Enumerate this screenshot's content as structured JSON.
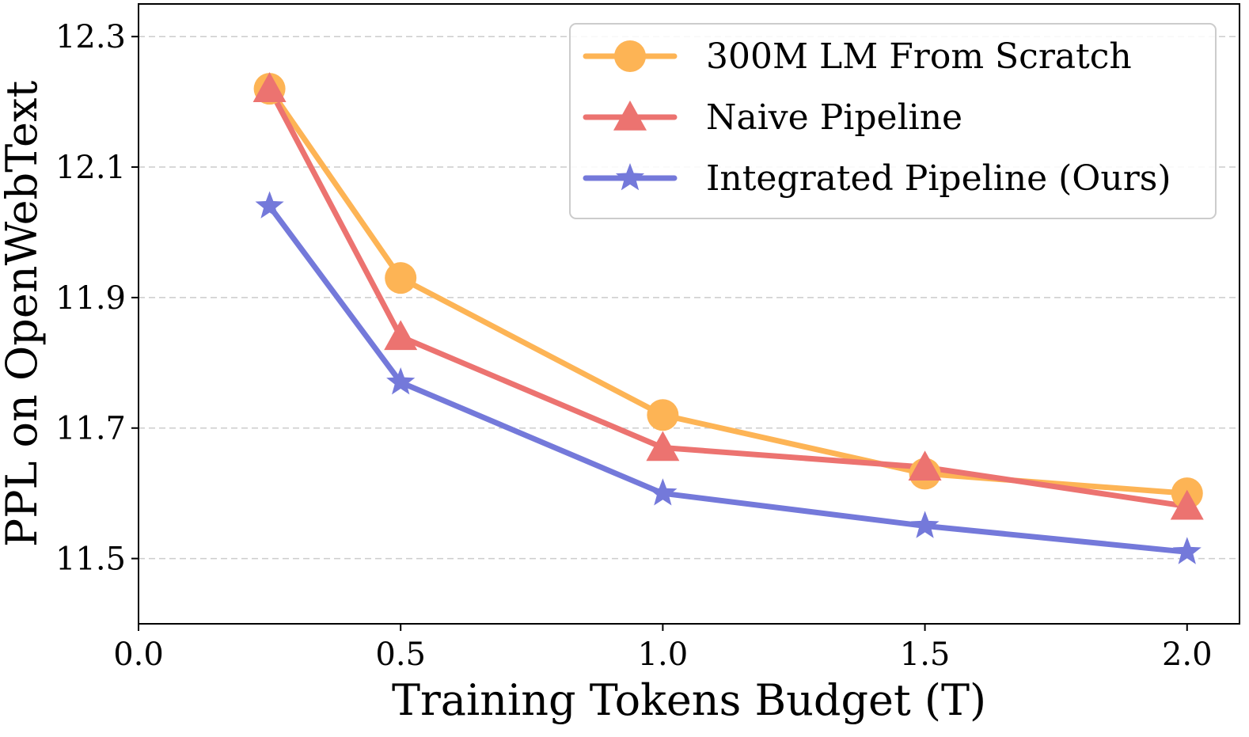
{
  "chart_data": {
    "type": "line",
    "xlabel": "Training Tokens Budget (T)",
    "ylabel": "PPL on OpenWebText",
    "xlim": [
      0.0,
      2.1
    ],
    "ylim": [
      11.4,
      12.35
    ],
    "xticks": [
      0.0,
      0.5,
      1.0,
      1.5,
      2.0
    ],
    "xtick_labels": [
      "0.0",
      "0.5",
      "1.0",
      "1.5",
      "2.0"
    ],
    "yticks": [
      11.5,
      11.7,
      11.9,
      12.1,
      12.3
    ],
    "ytick_labels": [
      "11.5",
      "11.7",
      "11.9",
      "12.1",
      "12.3"
    ],
    "grid": "horizontal-dashed",
    "legend_position": "top-right",
    "series": [
      {
        "name": "300M LM From Scratch",
        "marker": "circle",
        "color": "#FDB455",
        "x": [
          0.25,
          0.5,
          1.0,
          1.5,
          2.0
        ],
        "y": [
          12.22,
          11.93,
          11.72,
          11.63,
          11.6
        ]
      },
      {
        "name": "Naive Pipeline",
        "marker": "triangle",
        "color": "#EC7370",
        "x": [
          0.25,
          0.5,
          1.0,
          1.5,
          2.0
        ],
        "y": [
          12.22,
          11.84,
          11.67,
          11.64,
          11.58
        ]
      },
      {
        "name": "Integrated Pipeline (Ours)",
        "marker": "star",
        "color": "#7479DA",
        "x": [
          0.25,
          0.5,
          1.0,
          1.5,
          2.0
        ],
        "y": [
          12.04,
          11.77,
          11.6,
          11.55,
          11.51
        ]
      }
    ]
  }
}
